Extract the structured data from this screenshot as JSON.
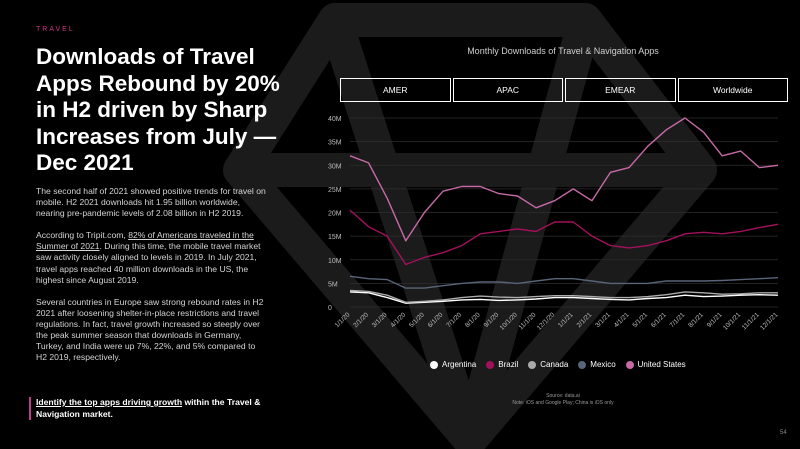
{
  "slide": {
    "eyebrow": "TRAVEL",
    "headline": "Downloads of Travel Apps Rebound by 20% in H2 driven by Sharp Increases from July — Dec 2021",
    "paragraphs": [
      {
        "before": "The second half of 2021 showed positive trends for travel on mobile. H2 2021 downloads hit 1.95 billion worldwide, nearing pre-pandemic levels of 2.08 billion in H2 2019.",
        "link": "",
        "after": ""
      },
      {
        "before": "According to Tripit.com, ",
        "link": "82% of Americans traveled in the Summer of 2021",
        "after": ". During this time, the mobile travel market saw activity closely aligned to levels in 2019. In July 2021, travel apps reached 40 million downloads in the US, the highest since August 2019."
      },
      {
        "before": "Several countries in Europe saw strong rebound rates in H2 2021 after loosening shelter-in-place restrictions and travel regulations. In fact, travel growth increased so steeply over the peak summer season that downloads in Germany, Turkey, and India were up 7%, 22%, and 5% compared to H2 2019, respectively.",
        "link": "",
        "after": ""
      }
    ],
    "cta_link": "Identify the top apps driving growth",
    "cta_rest": " within the Travel & Navigation market.",
    "source_title": "Source: data.ai",
    "source_note": "Note: iOS and Google Play; China is iOS only",
    "page_number": "54",
    "background_icon": "diamond-logo-watermark"
  },
  "chart_tabs": [
    "AMER",
    "APAC",
    "EMEAR",
    "Worldwide"
  ],
  "chart_data": {
    "type": "line",
    "title": "Monthly Downloads of Travel & Navigation Apps",
    "xlabel": "",
    "ylabel": "",
    "x": [
      "1/1/20",
      "2/1/20",
      "3/1/20",
      "4/1/20",
      "5/1/20",
      "6/1/20",
      "7/1/20",
      "8/1/20",
      "9/1/20",
      "10/1/20",
      "11/1/20",
      "12/1/20",
      "1/1/21",
      "2/1/21",
      "3/1/21",
      "4/1/21",
      "5/1/21",
      "6/1/21",
      "7/1/21",
      "8/1/21",
      "9/1/21",
      "10/1/21",
      "11/1/21",
      "12/1/21"
    ],
    "y_ticks": [
      "0",
      "5M",
      "10M",
      "15M",
      "20M",
      "25M",
      "30M",
      "35M",
      "40M"
    ],
    "ylim": [
      0,
      40
    ],
    "grid": true,
    "legend": "bottom",
    "series": [
      {
        "name": "Argentina",
        "color": "#ffffff",
        "values": [
          3.2,
          3,
          2,
          0.8,
          1,
          1.2,
          1.5,
          1.6,
          1.4,
          1.5,
          1.7,
          2,
          2,
          1.8,
          1.6,
          1.5,
          1.8,
          2,
          2.5,
          2.2,
          2.3,
          2.5,
          2.6,
          2.5
        ]
      },
      {
        "name": "Brazil",
        "color": "#a3115c",
        "values": [
          20.5,
          17,
          15,
          9,
          10.5,
          11.5,
          13,
          15.5,
          16,
          16.5,
          16,
          18,
          18,
          15,
          13,
          12.5,
          13,
          14,
          15.5,
          15.8,
          15.5,
          16,
          16.8,
          17.5
        ]
      },
      {
        "name": "Canada",
        "color": "#aaaaaa",
        "values": [
          3.5,
          3.3,
          2.5,
          1,
          1.2,
          1.5,
          2,
          2.3,
          2.1,
          2,
          2.2,
          2.4,
          2.4,
          2.2,
          2,
          2,
          2.2,
          2.6,
          3.2,
          3,
          2.7,
          2.8,
          3,
          3
        ]
      },
      {
        "name": "Mexico",
        "color": "#5a6478",
        "values": [
          6.5,
          6,
          5.8,
          4,
          4,
          4.5,
          5,
          5.3,
          5.3,
          5,
          5.5,
          6,
          6,
          5.5,
          5,
          5,
          5,
          5.5,
          5.5,
          5.5,
          5.6,
          5.8,
          6,
          6.2
        ]
      },
      {
        "name": "United States",
        "color": "#c66aa5",
        "values": [
          32,
          30.5,
          23,
          14,
          20,
          24.5,
          25.5,
          25.5,
          24,
          23.5,
          21,
          22.5,
          25,
          22.5,
          28.5,
          29.5,
          34,
          37.5,
          40,
          37,
          32,
          33,
          29.5,
          30
        ]
      }
    ]
  }
}
